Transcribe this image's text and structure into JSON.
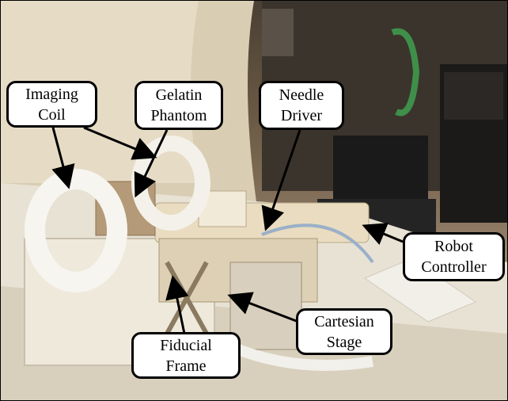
{
  "labels": {
    "imaging_coil": [
      "Imaging",
      "Coil"
    ],
    "gelatin_phantom": [
      "Gelatin",
      "Phantom"
    ],
    "needle_driver": [
      "Needle",
      "Driver"
    ],
    "robot_controller": [
      "Robot",
      "Controller"
    ],
    "cartesian_stage": [
      "Cartesian",
      "Stage"
    ],
    "fiducial_frame": [
      "Fiducial",
      "Frame"
    ]
  },
  "colors": {
    "callout_border": "#000000",
    "callout_fill": "#ffffff",
    "arrow": "#000000"
  }
}
